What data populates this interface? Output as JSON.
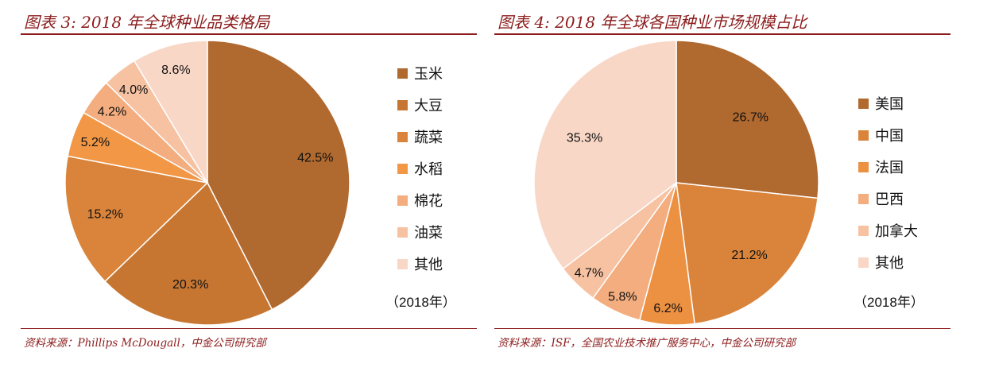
{
  "chart_data": [
    {
      "type": "pie",
      "title": "图表 3: 2018 年全球种业品类格局",
      "categories": [
        "玉米",
        "大豆",
        "蔬菜",
        "水稻",
        "棉花",
        "油菜",
        "其他"
      ],
      "values": [
        42.5,
        20.3,
        15.2,
        5.2,
        4.2,
        4.0,
        8.6
      ],
      "value_labels": [
        "42.5%",
        "20.3%",
        "15.2%",
        "5.2%",
        "4.2%",
        "4.0%",
        "8.6%"
      ],
      "colors": [
        "#B0692F",
        "#C77632",
        "#D9843A",
        "#F19746",
        "#F3AD7E",
        "#F6C2A2",
        "#F8D7C6"
      ],
      "legend_position": "right",
      "note": "（2018年）",
      "source": "资料来源：Phillips McDougall，中金公司研究部"
    },
    {
      "type": "pie",
      "title": "图表 4: 2018 年全球各国种业市场规模占比",
      "categories": [
        "美国",
        "中国",
        "法国",
        "巴西",
        "加拿大",
        "其他"
      ],
      "values": [
        26.7,
        21.2,
        6.2,
        5.8,
        4.7,
        35.3
      ],
      "value_labels": [
        "26.7%",
        "21.2%",
        "6.2%",
        "5.8%",
        "4.7%",
        "35.3%"
      ],
      "colors": [
        "#B0692F",
        "#D9843A",
        "#EC9042",
        "#F3AD7E",
        "#F6C2A2",
        "#F8D7C6"
      ],
      "legend_position": "right",
      "note": "（2018年）",
      "source": "资料来源：ISF，全国农业技术推广服务中心，中金公司研究部"
    }
  ]
}
